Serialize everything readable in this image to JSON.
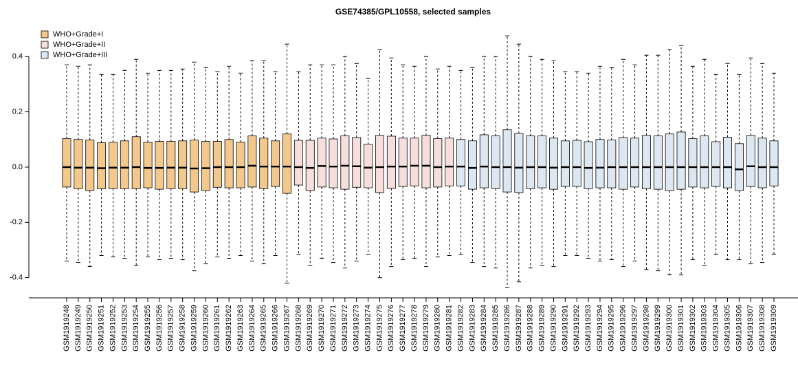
{
  "chart_data": {
    "type": "box",
    "title": "GSE74385/GPL10558, selected samples",
    "ylim": [
      -0.473,
      0.53
    ],
    "yticks": [
      -0.4,
      -0.2,
      {
        "value": 0,
        "label": "0.0"
      },
      0.2,
      0.4
    ],
    "legend": "topleft",
    "series": [
      {
        "name": "WHO+Grade+I",
        "color": "#f3c88d",
        "categories": [
          "GSM1919248",
          "GSM1919249",
          "GSM1919250",
          "GSM1919251",
          "GSM1919252",
          "GSM1919253",
          "GSM1919254",
          "GSM1919255",
          "GSM1919256",
          "GSM1919257",
          "GSM1919258",
          "GSM1919259",
          "GSM1919260",
          "GSM1919261",
          "GSM1919262",
          "GSM1919263",
          "GSM1919264",
          "GSM1919265",
          "GSM1919266",
          "GSM1919267"
        ],
        "boxes": [
          [
            -0.34,
            -0.072,
            0.0,
            0.103,
            0.37
          ],
          [
            -0.345,
            -0.078,
            -0.002,
            0.1,
            0.365
          ],
          [
            -0.36,
            -0.085,
            -0.002,
            0.098,
            0.37
          ],
          [
            -0.32,
            -0.078,
            -0.004,
            0.088,
            0.335
          ],
          [
            -0.325,
            -0.078,
            -0.002,
            0.09,
            0.335
          ],
          [
            -0.33,
            -0.078,
            -0.002,
            0.095,
            0.35
          ],
          [
            -0.355,
            -0.078,
            0.0,
            0.11,
            0.39
          ],
          [
            -0.325,
            -0.075,
            -0.003,
            0.09,
            0.34
          ],
          [
            -0.335,
            -0.08,
            -0.003,
            0.093,
            0.35
          ],
          [
            -0.33,
            -0.078,
            -0.002,
            0.093,
            0.35
          ],
          [
            -0.335,
            -0.078,
            -0.002,
            0.095,
            0.355
          ],
          [
            -0.375,
            -0.09,
            -0.005,
            0.098,
            0.38
          ],
          [
            -0.35,
            -0.085,
            -0.004,
            0.093,
            0.36
          ],
          [
            -0.325,
            -0.073,
            0.0,
            0.093,
            0.345
          ],
          [
            -0.33,
            -0.075,
            0.0,
            0.1,
            0.365
          ],
          [
            -0.32,
            -0.075,
            0.0,
            0.09,
            0.34
          ],
          [
            -0.34,
            -0.072,
            0.005,
            0.113,
            0.385
          ],
          [
            -0.35,
            -0.078,
            0.002,
            0.105,
            0.385
          ],
          [
            -0.32,
            -0.07,
            0.002,
            0.095,
            0.345
          ],
          [
            -0.42,
            -0.095,
            0.002,
            0.12,
            0.445
          ]
        ]
      },
      {
        "name": "WHO+Grade+II",
        "color": "#f5dedb",
        "categories": [
          "GSM1919268",
          "GSM1919269",
          "GSM1919270",
          "GSM1919271",
          "GSM1919272",
          "GSM1919273",
          "GSM1919274",
          "GSM1919275",
          "GSM1919276",
          "GSM1919277",
          "GSM1919278",
          "GSM1919279",
          "GSM1919280",
          "GSM1919281"
        ],
        "boxes": [
          [
            -0.315,
            -0.065,
            0.0,
            0.097,
            0.345
          ],
          [
            -0.355,
            -0.085,
            -0.003,
            0.097,
            0.37
          ],
          [
            -0.33,
            -0.072,
            0.004,
            0.105,
            0.37
          ],
          [
            -0.345,
            -0.075,
            0.002,
            0.102,
            0.37
          ],
          [
            -0.365,
            -0.08,
            0.005,
            0.113,
            0.4
          ],
          [
            -0.34,
            -0.073,
            0.003,
            0.107,
            0.375
          ],
          [
            -0.315,
            -0.075,
            -0.002,
            0.083,
            0.32
          ],
          [
            -0.4,
            -0.092,
            0.0,
            0.115,
            0.425
          ],
          [
            -0.36,
            -0.077,
            0.002,
            0.112,
            0.395
          ],
          [
            -0.335,
            -0.07,
            0.002,
            0.105,
            0.37
          ],
          [
            -0.33,
            -0.068,
            0.005,
            0.105,
            0.365
          ],
          [
            -0.36,
            -0.075,
            0.005,
            0.115,
            0.4
          ],
          [
            -0.325,
            -0.072,
            0.0,
            0.103,
            0.355
          ],
          [
            -0.32,
            -0.068,
            0.002,
            0.105,
            0.365
          ]
        ]
      },
      {
        "name": "WHO+Grade+III",
        "color": "#dde7f1",
        "categories": [
          "GSM1919282",
          "GSM1919283",
          "GSM1919284",
          "GSM1919285",
          "GSM1919286",
          "GSM1919287",
          "GSM1919288",
          "GSM1919289",
          "GSM1919290",
          "GSM1919291",
          "GSM1919292",
          "GSM1919293",
          "GSM1919294",
          "GSM1919295",
          "GSM1919296",
          "GSM1919297",
          "GSM1919298",
          "GSM1919299",
          "GSM1919300",
          "GSM1919301",
          "GSM1919302",
          "GSM1919303",
          "GSM1919304",
          "GSM1919305",
          "GSM1919306",
          "GSM1919307",
          "GSM1919308",
          "GSM1919309"
        ],
        "boxes": [
          [
            -0.315,
            -0.068,
            0.002,
            0.1,
            0.35
          ],
          [
            -0.345,
            -0.08,
            -0.003,
            0.095,
            0.36
          ],
          [
            -0.36,
            -0.075,
            0.002,
            0.117,
            0.4
          ],
          [
            -0.365,
            -0.078,
            0.0,
            0.113,
            0.4
          ],
          [
            -0.435,
            -0.09,
            0.0,
            0.135,
            0.475
          ],
          [
            -0.415,
            -0.092,
            -0.002,
            0.122,
            0.445
          ],
          [
            -0.365,
            -0.078,
            0.0,
            0.113,
            0.4
          ],
          [
            -0.355,
            -0.075,
            0.0,
            0.113,
            0.39
          ],
          [
            -0.36,
            -0.08,
            -0.002,
            0.105,
            0.385
          ],
          [
            -0.32,
            -0.07,
            0.0,
            0.095,
            0.345
          ],
          [
            -0.32,
            -0.07,
            0.0,
            0.097,
            0.345
          ],
          [
            -0.33,
            -0.078,
            -0.003,
            0.092,
            0.34
          ],
          [
            -0.34,
            -0.075,
            -0.002,
            0.1,
            0.365
          ],
          [
            -0.335,
            -0.075,
            0.0,
            0.098,
            0.36
          ],
          [
            -0.36,
            -0.08,
            0.0,
            0.107,
            0.39
          ],
          [
            -0.34,
            -0.072,
            0.0,
            0.105,
            0.37
          ],
          [
            -0.37,
            -0.078,
            0.0,
            0.115,
            0.405
          ],
          [
            -0.375,
            -0.08,
            0.0,
            0.113,
            0.405
          ],
          [
            -0.39,
            -0.085,
            0.0,
            0.12,
            0.425
          ],
          [
            -0.39,
            -0.08,
            0.0,
            0.127,
            0.44
          ],
          [
            -0.335,
            -0.072,
            0.0,
            0.103,
            0.365
          ],
          [
            -0.355,
            -0.075,
            0.0,
            0.113,
            0.39
          ],
          [
            -0.315,
            -0.07,
            0.0,
            0.092,
            0.335
          ],
          [
            -0.335,
            -0.075,
            0.0,
            0.108,
            0.375
          ],
          [
            -0.335,
            -0.085,
            -0.008,
            0.085,
            0.335
          ],
          [
            -0.35,
            -0.07,
            0.003,
            0.115,
            0.395
          ],
          [
            -0.345,
            -0.075,
            0.0,
            0.105,
            0.375
          ],
          [
            -0.315,
            -0.068,
            0.0,
            0.095,
            0.34
          ]
        ]
      }
    ]
  }
}
